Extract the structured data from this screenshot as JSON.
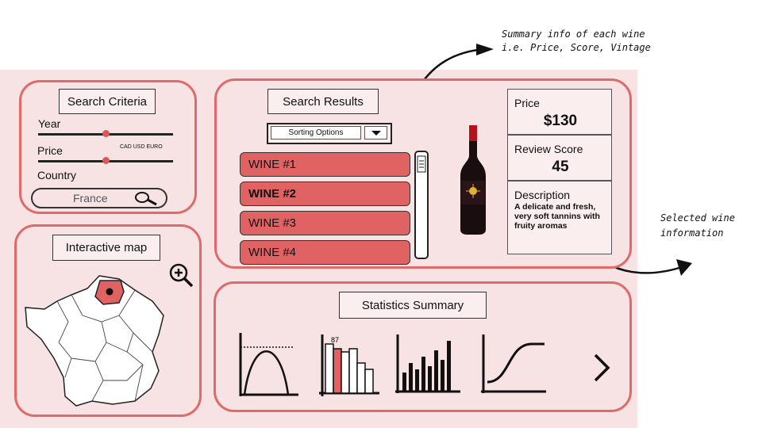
{
  "annotations": {
    "summary_line1": "Summary info of each wine",
    "summary_line2": "i.e. Price, Score, Vintage",
    "selected_line1": "Selected wine",
    "selected_line2": "information"
  },
  "search_criteria": {
    "title": "Search Criteria",
    "year_label": "Year",
    "price_label": "Price",
    "currency_options": "CAD USD EURO",
    "country_label": "Country",
    "country_value": "France",
    "year_level": 0.56,
    "price_level": 0.56
  },
  "map": {
    "title": "Interactive map",
    "zoom_icon": "zoom-in-icon",
    "highlight_color": "#e06262"
  },
  "results": {
    "title": "Search Results",
    "sort_label": "Sorting Options",
    "wines": [
      "WINE #1",
      "WINE #2",
      "WINE #3",
      "WINE #4"
    ],
    "selected_index": 1
  },
  "selected_wine": {
    "price_label": "Price",
    "price_value": "$130",
    "score_label": "Review Score",
    "score_value": "45",
    "description_label": "Description",
    "description_text": "A delicate and fresh, very soft tannins with fruity aromas"
  },
  "statistics": {
    "title": "Statistics Summary",
    "bar_label": "87",
    "next_icon": "chevron-right-icon"
  },
  "colors": {
    "accent": "#e06a6a",
    "panel_bg": "#f7e3e3",
    "wine_button": "#e06262"
  }
}
